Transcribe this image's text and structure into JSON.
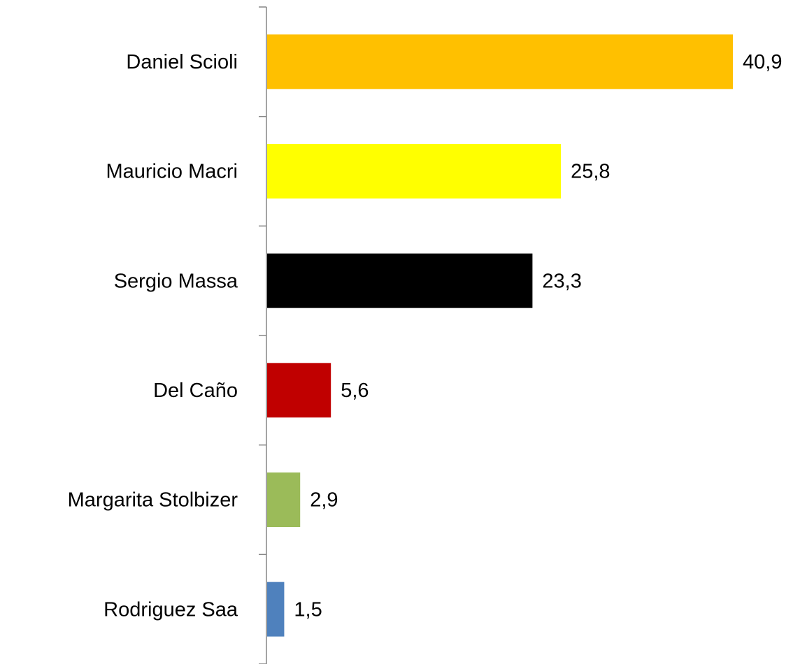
{
  "chart_data": {
    "type": "bar",
    "orientation": "horizontal",
    "categories": [
      "Daniel Scioli",
      "Mauricio Macri",
      "Sergio Massa",
      "Del Caño",
      "Margarita Stolbizer",
      "Rodriguez Saa"
    ],
    "values": [
      40.9,
      25.8,
      23.3,
      5.6,
      2.9,
      1.5
    ],
    "value_labels": [
      "40,9",
      "25,8",
      "23,3",
      "5,6",
      "2,9",
      "1,5"
    ],
    "colors": [
      "#FFC000",
      "#FFFF00",
      "#000000",
      "#C00000",
      "#9BBB59",
      "#4F81BD"
    ]
  }
}
